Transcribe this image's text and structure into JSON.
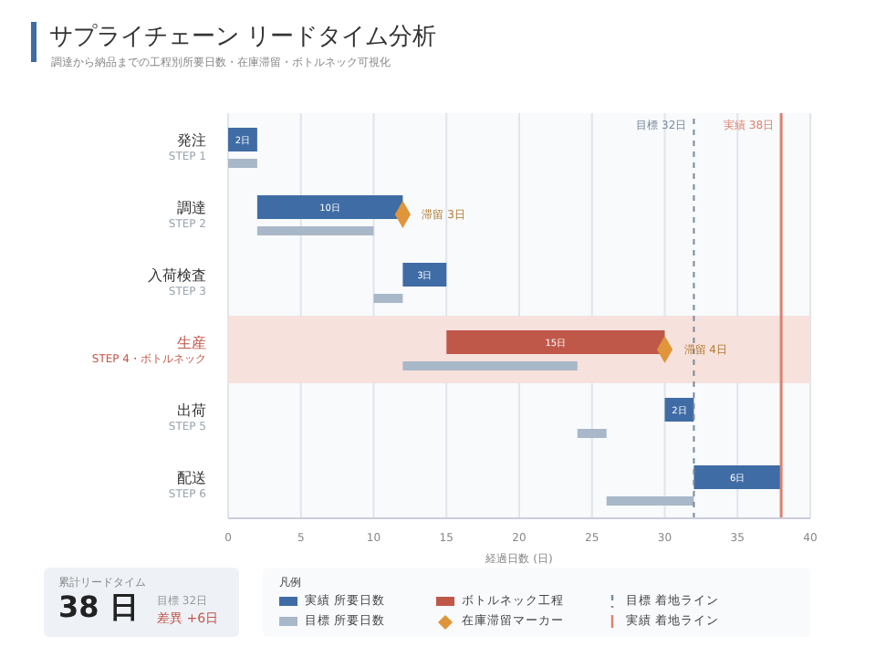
{
  "chart_data": {
    "type": "bar",
    "orientation": "horizontal",
    "title": "サプライチェーン リードタイム分析",
    "subtitle": "調達から納品までの工程別所要日数・在庫滞留・ボトルネック可視化",
    "categories": [
      "発注\nSTEP 1",
      "調達\nSTEP 2",
      "入荷検査\nSTEP 3",
      "生産\nSTEP 4・ボトルネック",
      "出荷\nSTEP 5",
      "配送\nSTEP 6"
    ],
    "series": [
      {
        "name": "実績 所要日数",
        "color": "#3f6ca5",
        "values": [
          2,
          10,
          3,
          null,
          2,
          6
        ],
        "base": [
          0,
          2,
          12,
          null,
          30,
          32
        ],
        "value_labels": [
          "2日",
          "10日",
          "3日",
          null,
          "2日",
          "6日"
        ]
      },
      {
        "name": "ボトルネック工程",
        "color": "#c0584a",
        "values": [
          null,
          null,
          null,
          15,
          null,
          null
        ],
        "base": [
          null,
          null,
          null,
          15,
          null,
          null
        ],
        "value_labels": [
          null,
          null,
          null,
          "15日",
          null,
          null
        ]
      },
      {
        "name": "目標 所要日数",
        "color": "#a9b8c8",
        "values": [
          2,
          8,
          2,
          12,
          2,
          6
        ],
        "base": [
          0,
          2,
          10,
          12,
          24,
          26
        ]
      },
      {
        "name": "在庫滞留マーカー",
        "type": "scatter",
        "marker": "diamond",
        "color": "#e0953a",
        "values": [
          null,
          12,
          null,
          30,
          null,
          null
        ],
        "value_labels": [
          null,
          "滞留 3日",
          null,
          "滞留 4日",
          null,
          null
        ]
      }
    ],
    "xlabel": "経過日数 (日)",
    "xlim": [
      0,
      40
    ],
    "xticks": [
      0,
      5,
      10,
      15,
      20,
      25,
      30,
      35,
      40
    ],
    "grid": "x",
    "legend": "bottom",
    "legend_title": "凡例",
    "ref_lines": [
      {
        "axis": "x",
        "value": 32,
        "label": "目標 32日",
        "color": "#7a8a9c",
        "line_style": "dashed"
      },
      {
        "axis": "x",
        "value": 38,
        "label": "実績 38日",
        "color": "#d9826f",
        "line_style": "solid"
      }
    ],
    "bands": [
      {
        "axis": "y",
        "from": "生産\nSTEP 4・ボトルネック",
        "to": "生産\nSTEP 4・ボトルネック",
        "color": "#f7e1dd"
      }
    ],
    "annotations": [
      "累計リードタイム",
      "38 日",
      "目標 32日",
      "差異 +6日",
      "目標 着地ライン",
      "実績 着地ライン"
    ]
  }
}
